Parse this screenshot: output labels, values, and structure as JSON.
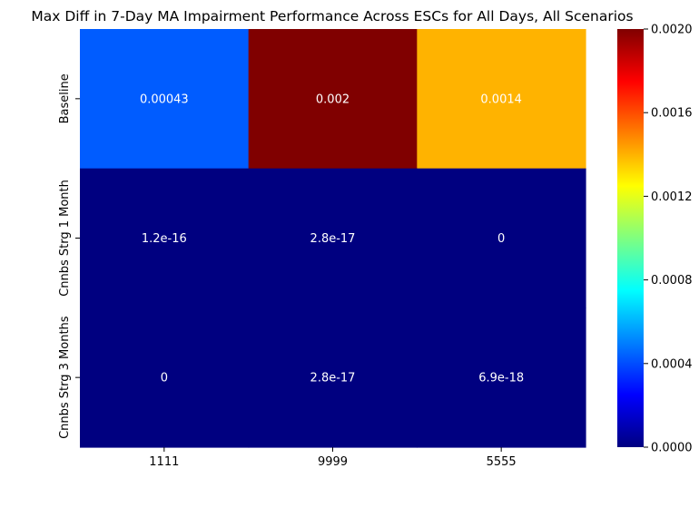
{
  "chart_data": {
    "type": "heatmap",
    "title": "Max Diff in 7-Day MA Impairment Performance Across ESCs for All Days, All Scenarios",
    "xlabel": "",
    "ylabel": "",
    "x_categories": [
      "1111",
      "9999",
      "5555"
    ],
    "y_categories": [
      "Baseline",
      "Cnnbs Strg 1 Month",
      "Cnnbs Strg 3 Months"
    ],
    "values": [
      [
        0.00043,
        0.002,
        0.0014
      ],
      [
        1.2e-16,
        2.8e-17,
        0
      ],
      [
        0,
        2.8e-17,
        6.9e-18
      ]
    ],
    "cell_labels": [
      [
        "0.00043",
        "0.002",
        "0.0014"
      ],
      [
        "1.2e-16",
        "2.8e-17",
        "0"
      ],
      [
        "0",
        "2.8e-17",
        "6.9e-18"
      ]
    ],
    "colormap": "jet",
    "vmin": 0,
    "vmax": 0.002,
    "colorbar_ticks": [
      "0.0000",
      "0.0004",
      "0.0008",
      "0.0012",
      "0.0016",
      "0.0020"
    ],
    "colorbar_tick_values": [
      0,
      0.0004,
      0.0008,
      0.0012,
      0.0016,
      0.002
    ],
    "annotation_color": "#ffffff"
  }
}
